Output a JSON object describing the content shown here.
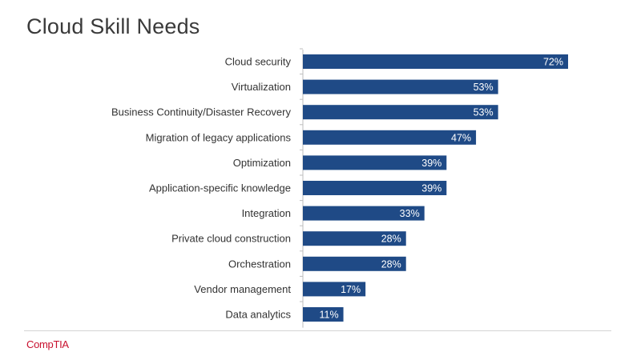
{
  "title": "Cloud Skill Needs",
  "logo_text": "CompTIA",
  "colors": {
    "bar": "#1f4a86",
    "logo": "#c8102e"
  },
  "chart_data": {
    "type": "bar",
    "orientation": "horizontal",
    "title": "",
    "xlabel": "",
    "ylabel": "",
    "xlim": [
      0,
      80
    ],
    "grid": false,
    "categories": [
      "Cloud security",
      "Virtualization",
      "Business Continuity/Disaster Recovery",
      "Migration of legacy applications",
      "Optimization",
      "Application-specific knowledge",
      "Integration",
      "Private cloud construction",
      "Orchestration",
      "Vendor management",
      "Data analytics"
    ],
    "values": [
      72,
      53,
      53,
      47,
      39,
      39,
      33,
      28,
      28,
      17,
      11
    ],
    "value_labels": [
      "72%",
      "53%",
      "53%",
      "47%",
      "39%",
      "39%",
      "33%",
      "28%",
      "28%",
      "17%",
      "11%"
    ]
  }
}
